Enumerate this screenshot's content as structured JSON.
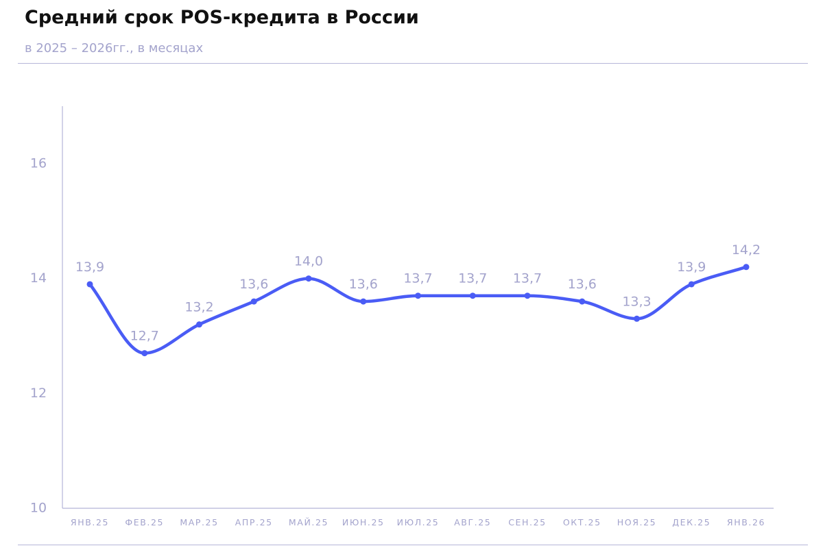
{
  "header": {
    "title": "Средний срок POS-кредита в России",
    "subtitle": "в 2025 – 2026гг., в месяцах"
  },
  "chart_data": {
    "type": "line",
    "title": "Средний срок POS-кредита в России",
    "subtitle": "в 2025 – 2026гг., в месяцах",
    "xlabel": "",
    "ylabel": "",
    "categories": [
      "ЯНВ.25",
      "ФЕВ.25",
      "МАР.25",
      "АПР.25",
      "МАЙ.25",
      "ИЮН.25",
      "ИЮЛ.25",
      "АВГ.25",
      "СЕН.25",
      "ОКТ.25",
      "НОЯ.25",
      "ДЕК.25",
      "ЯНВ.26"
    ],
    "series": [
      {
        "values": [
          13.9,
          12.7,
          13.2,
          13.6,
          14.0,
          13.6,
          13.7,
          13.7,
          13.7,
          13.6,
          13.3,
          13.9,
          14.2
        ],
        "labels": [
          "13,9",
          "12,7",
          "13,2",
          "13,6",
          "14,0",
          "13,6",
          "13,7",
          "13,7",
          "13,7",
          "13,6",
          "13,3",
          "13,9",
          "14,2"
        ],
        "color": "#4a5cf5"
      }
    ],
    "ylim": [
      10,
      17
    ],
    "yticks": [
      10,
      12,
      14,
      16
    ],
    "ytick_labels": [
      "10",
      "12",
      "14",
      "16"
    ],
    "grid": false,
    "line_color": "#4a5cf5",
    "axis_color": "#b5b5d8",
    "text_color": "#a3a3cc"
  }
}
